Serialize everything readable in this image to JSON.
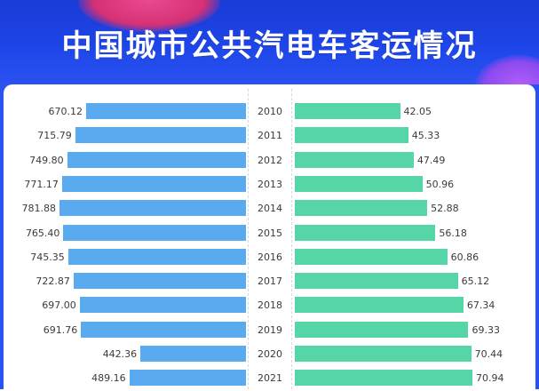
{
  "title": "中国城市公共汽电车客运情况",
  "colors": {
    "left_bar": "#5aaaf0",
    "right_bar": "#56d6a6",
    "header": "#1e45e8"
  },
  "chart_data": {
    "type": "bar",
    "categories": [
      "2010",
      "2011",
      "2012",
      "2013",
      "2014",
      "2015",
      "2016",
      "2017",
      "2018",
      "2019",
      "2020",
      "2021"
    ],
    "series": [
      {
        "values": [
          670.12,
          715.79,
          749.8,
          771.17,
          781.88,
          765.4,
          745.35,
          722.87,
          697.0,
          691.76,
          442.36,
          489.16
        ]
      },
      {
        "values": [
          42.05,
          45.33,
          47.49,
          50.96,
          52.88,
          56.18,
          60.86,
          65.12,
          67.34,
          69.33,
          70.44,
          70.94
        ]
      }
    ],
    "labels_left": [
      "670.12",
      "715.79",
      "749.80",
      "771.17",
      "781.88",
      "765.40",
      "745.35",
      "722.87",
      "697.00",
      "691.76",
      "442.36",
      "489.16"
    ],
    "labels_right": [
      "42.05",
      "45.33",
      "47.49",
      "50.96",
      "52.88",
      "56.18",
      "60.86",
      "65.12",
      "67.34",
      "69.33",
      "70.44",
      "70.94"
    ]
  }
}
